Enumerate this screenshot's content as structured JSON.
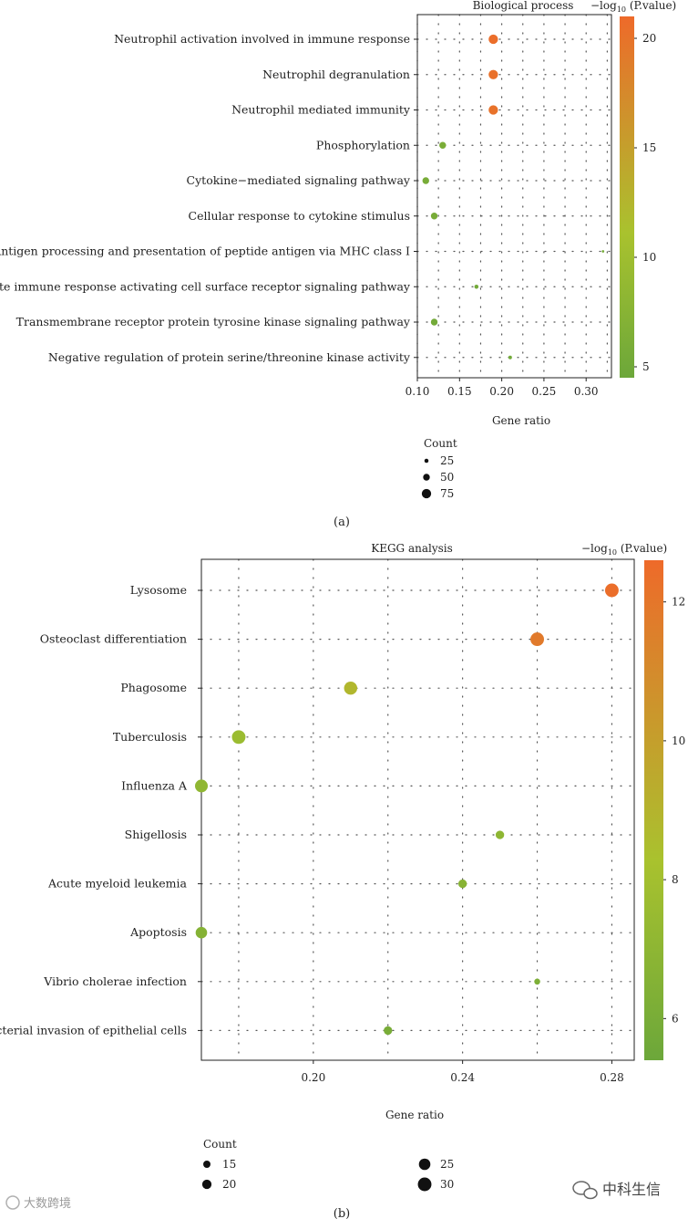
{
  "chart_data": [
    {
      "type": "scatter",
      "panel_label": "(a)",
      "title": "Biological process",
      "xlabel": "Gene ratio",
      "xlim": [
        0.1,
        0.33
      ],
      "xticks": [
        "0.10",
        "0.15",
        "0.20",
        "0.25",
        "0.30"
      ],
      "xtick_values": [
        0.1,
        0.15,
        0.2,
        0.25,
        0.3
      ],
      "categories": [
        "Neutrophil activation involved in immune response",
        "Neutrophil degranulation",
        "Neutrophil mediated immunity",
        "Phosphorylation",
        "Cytokine−mediated signaling pathway",
        "Cellular response to cytokine stimulus",
        "Antigen processing and presentation of peptide antigen via MHC class I",
        "Innate immune response activating cell surface receptor signaling pathway",
        "Transmembrane receptor protein tyrosine kinase signaling pathway",
        "Negative regulation of protein serine/threonine kinase activity"
      ],
      "points": [
        {
          "x": 0.19,
          "count": 75,
          "neglog10p": 20.5
        },
        {
          "x": 0.19,
          "count": 75,
          "neglog10p": 20.3
        },
        {
          "x": 0.19,
          "count": 75,
          "neglog10p": 20.1
        },
        {
          "x": 0.13,
          "count": 50,
          "neglog10p": 6.0
        },
        {
          "x": 0.11,
          "count": 50,
          "neglog10p": 5.8
        },
        {
          "x": 0.12,
          "count": 50,
          "neglog10p": 5.8
        },
        {
          "x": 0.32,
          "count": 10,
          "neglog10p": 5.5
        },
        {
          "x": 0.17,
          "count": 25,
          "neglog10p": 5.3
        },
        {
          "x": 0.12,
          "count": 50,
          "neglog10p": 5.3
        },
        {
          "x": 0.21,
          "count": 20,
          "neglog10p": 5.2
        }
      ],
      "colorbar": {
        "title_prefix": "−log",
        "title_sub": "10",
        "title_suffix": " (P.value)",
        "range": [
          4.5,
          21.0
        ],
        "ticks": [
          5,
          10,
          15,
          20
        ],
        "tick_labels": [
          "5",
          "10",
          "15",
          "20"
        ],
        "low_color": "#6ca73a",
        "mid_color": "#a9c22e",
        "high_color": "#ee6a2a"
      },
      "size_legend": {
        "title": "Count",
        "values": [
          25,
          50,
          75
        ],
        "labels": [
          "25",
          "50",
          "75"
        ]
      }
    },
    {
      "type": "scatter",
      "panel_label": "(b)",
      "title": "KEGG analysis",
      "xlabel": "Gene ratio",
      "xlim": [
        0.17,
        0.286
      ],
      "xticks": [
        "0.20",
        "0.24",
        "0.28"
      ],
      "xtick_values": [
        0.2,
        0.24,
        0.28
      ],
      "xgrid": [
        0.18,
        0.2,
        0.22,
        0.24,
        0.26,
        0.28
      ],
      "categories": [
        "Lysosome",
        "Osteoclast differentiation",
        "Phagosome",
        "Tuberculosis",
        "Influenza A",
        "Shigellosis",
        "Acute myeloid leukemia",
        "Apoptosis",
        "Vibrio cholerae infection",
        "Bacterial invasion of epithelial cells"
      ],
      "points": [
        {
          "x": 0.28,
          "count": 30,
          "neglog10p": 12.4
        },
        {
          "x": 0.26,
          "count": 30,
          "neglog10p": 11.8
        },
        {
          "x": 0.21,
          "count": 29,
          "neglog10p": 8.8
        },
        {
          "x": 0.18,
          "count": 30,
          "neglog10p": 7.6
        },
        {
          "x": 0.17,
          "count": 28,
          "neglog10p": 7.1
        },
        {
          "x": 0.25,
          "count": 18,
          "neglog10p": 7.0
        },
        {
          "x": 0.24,
          "count": 18,
          "neglog10p": 6.7
        },
        {
          "x": 0.17,
          "count": 25,
          "neglog10p": 6.6
        },
        {
          "x": 0.26,
          "count": 12,
          "neglog10p": 6.2
        },
        {
          "x": 0.22,
          "count": 18,
          "neglog10p": 6.0
        }
      ],
      "colorbar": {
        "title_prefix": "−log",
        "title_sub": "10",
        "title_suffix": " (P.value)",
        "range": [
          5.4,
          12.6
        ],
        "ticks": [
          6,
          8,
          10,
          12
        ],
        "tick_labels": [
          "6",
          "8",
          "10",
          "12"
        ],
        "low_color": "#6ca73a",
        "mid_color": "#a9c22e",
        "high_color": "#ee6a2a"
      },
      "size_legend": {
        "title": "Count",
        "values": [
          15,
          20,
          25,
          30
        ],
        "labels": [
          "15",
          "20",
          "25",
          "30"
        ]
      }
    }
  ],
  "watermarks": {
    "left": "大数跨境",
    "right": "中科生信"
  },
  "colors": {
    "grid_dot": "#555555",
    "axis": "#222222"
  }
}
